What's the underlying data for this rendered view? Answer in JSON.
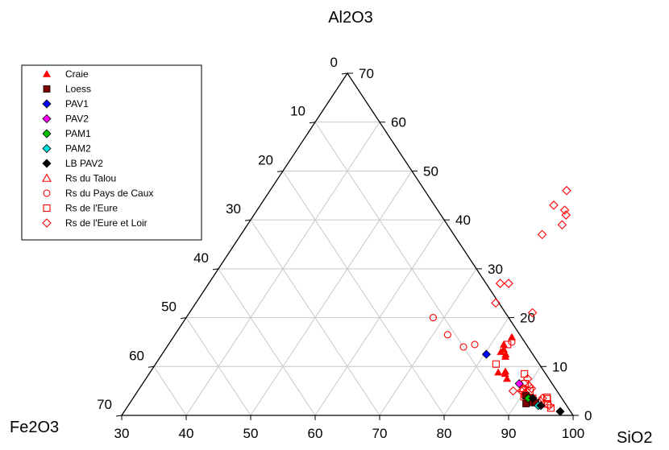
{
  "chart_data": {
    "type": "scatter",
    "ternary": true,
    "title": "",
    "axes": {
      "top": "Al2O3",
      "left": "Fe2O3",
      "right": "SiO2"
    },
    "ranges": {
      "SiO2": [
        30,
        100
      ],
      "Al2O3": [
        0,
        70
      ],
      "Fe2O3": [
        0,
        70
      ]
    },
    "ticks": {
      "SiO2": [
        "30",
        "40",
        "50",
        "60",
        "70",
        "80",
        "90",
        "100"
      ],
      "Al2O3": [
        "0",
        "10",
        "20",
        "30",
        "40",
        "50",
        "60",
        "70"
      ],
      "Fe2O3": [
        "0",
        "10",
        "20",
        "30",
        "40",
        "50",
        "60",
        "70"
      ]
    },
    "grid": true,
    "legend_position": "top-left",
    "series": [
      {
        "name": "Craie",
        "marker": "triangle",
        "filled": true,
        "color": "#ff0000",
        "points": [
          [
            82.5,
            16.0,
            1.5
          ],
          [
            82.0,
            14.5,
            3.5
          ],
          [
            82.5,
            13.5,
            4.0
          ],
          [
            82.3,
            13.0,
            4.7
          ],
          [
            83.3,
            12.5,
            4.2
          ],
          [
            83.5,
            12.0,
            4.5
          ],
          [
            84.0,
            8.8,
            7.2
          ],
          [
            85.0,
            9.0,
            6.0
          ],
          [
            85.2,
            8.5,
            6.3
          ],
          [
            86.0,
            7.5,
            6.5
          ]
        ]
      },
      {
        "name": "Loess",
        "marker": "square",
        "filled": true,
        "color": "#800000",
        "points": [
          [
            90.7,
            4.0,
            5.3
          ],
          [
            91.5,
            3.5,
            5.0
          ],
          [
            91.6,
            3.3,
            5.1
          ],
          [
            92.3,
            3.0,
            4.7
          ],
          [
            92.2,
            2.6,
            5.2
          ],
          [
            91.5,
            2.4,
            6.1
          ],
          [
            92.9,
            2.6,
            4.5
          ]
        ]
      },
      {
        "name": "PAV1",
        "marker": "diamond",
        "filled": true,
        "color": "#0000ff",
        "points": [
          [
            80.3,
            12.5,
            7.2
          ]
        ]
      },
      {
        "name": "PAV2",
        "marker": "diamond",
        "filled": true,
        "color": "#ff00ff",
        "points": [
          [
            88.4,
            6.5,
            5.1
          ]
        ]
      },
      {
        "name": "PAM1",
        "marker": "diamond",
        "filled": true,
        "color": "#00c000",
        "points": [
          [
            91.3,
            3.5,
            5.2
          ]
        ]
      },
      {
        "name": "PAM2",
        "marker": "diamond",
        "filled": true,
        "color": "#00e0e0",
        "points": [
          [
            93.6,
            2.0,
            4.4
          ]
        ]
      },
      {
        "name": "LB PAV2",
        "marker": "diamond",
        "filled": true,
        "color": "#000000",
        "points": [
          [
            92.0,
            3.5,
            4.5
          ],
          [
            94.0,
            2.0,
            4.0
          ],
          [
            97.6,
            0.8,
            1.6
          ]
        ]
      },
      {
        "name": "Rs du Talou",
        "marker": "triangle",
        "filled": false,
        "color": "#ff0000",
        "points": [
          [
            89.5,
            5.5,
            5.0
          ],
          [
            93.5,
            3.0,
            3.5
          ],
          [
            91.2,
            3.6,
            5.2
          ]
        ]
      },
      {
        "name": "Rs du Pays de Caux",
        "marker": "circle",
        "filled": false,
        "color": "#ff0000",
        "points": [
          [
            68.3,
            20.0,
            11.7
          ],
          [
            72.3,
            16.5,
            11.2
          ],
          [
            76.0,
            14.0,
            10.0
          ],
          [
            77.5,
            14.5,
            8.0
          ],
          [
            83.0,
            15.0,
            2.0
          ],
          [
            90.5,
            4.0,
            5.5
          ]
        ]
      },
      {
        "name": "Rs de l'Eure",
        "marker": "square",
        "filled": false,
        "color": "#ff0000",
        "points": [
          [
            82.6,
            14.5,
            2.9
          ],
          [
            82.8,
            10.5,
            6.7
          ],
          [
            89.3,
            6.5,
            4.2
          ],
          [
            88.2,
            8.5,
            3.3
          ],
          [
            89.5,
            5.5,
            5.0
          ],
          [
            90.8,
            5.0,
            4.2
          ],
          [
            90.5,
            3.8,
            5.7
          ],
          [
            92.0,
            3.5,
            4.5
          ],
          [
            94.1,
            3.7,
            2.2
          ],
          [
            94.3,
            3.4,
            2.3
          ],
          [
            94.9,
            2.3,
            2.8
          ],
          [
            95.8,
            1.5,
            2.7
          ]
        ]
      },
      {
        "name": "Rs de l'Eure et Loir",
        "marker": "diamond",
        "filled": false,
        "color": "#ff0000",
        "points": [
          [
            76.5,
            23.0,
            0.5
          ],
          [
            75.2,
            27.0,
            -2.2
          ],
          [
            76.5,
            27.0,
            -3.5
          ],
          [
            76.7,
            37.0,
            -13.7
          ],
          [
            75.5,
            43.0,
            -18.5
          ],
          [
            76.0,
            46.0,
            -22.0
          ],
          [
            77.7,
            42.0,
            -19.7
          ],
          [
            78.4,
            41.0,
            -19.4
          ],
          [
            78.8,
            39.0,
            -17.8
          ],
          [
            83.2,
            21.0,
            -4.2
          ],
          [
            88.2,
            5.0,
            6.8
          ],
          [
            89.2,
            7.5,
            3.3
          ],
          [
            90.2,
            6.0,
            3.8
          ],
          [
            90.8,
            5.5,
            3.7
          ],
          [
            89.5,
            5.0,
            5.5
          ],
          [
            90.3,
            4.5,
            5.2
          ],
          [
            91.0,
            4.0,
            5.0
          ],
          [
            93.5,
            3.5,
            3.0
          ],
          [
            95.3,
            2.0,
            2.7
          ]
        ]
      }
    ]
  }
}
